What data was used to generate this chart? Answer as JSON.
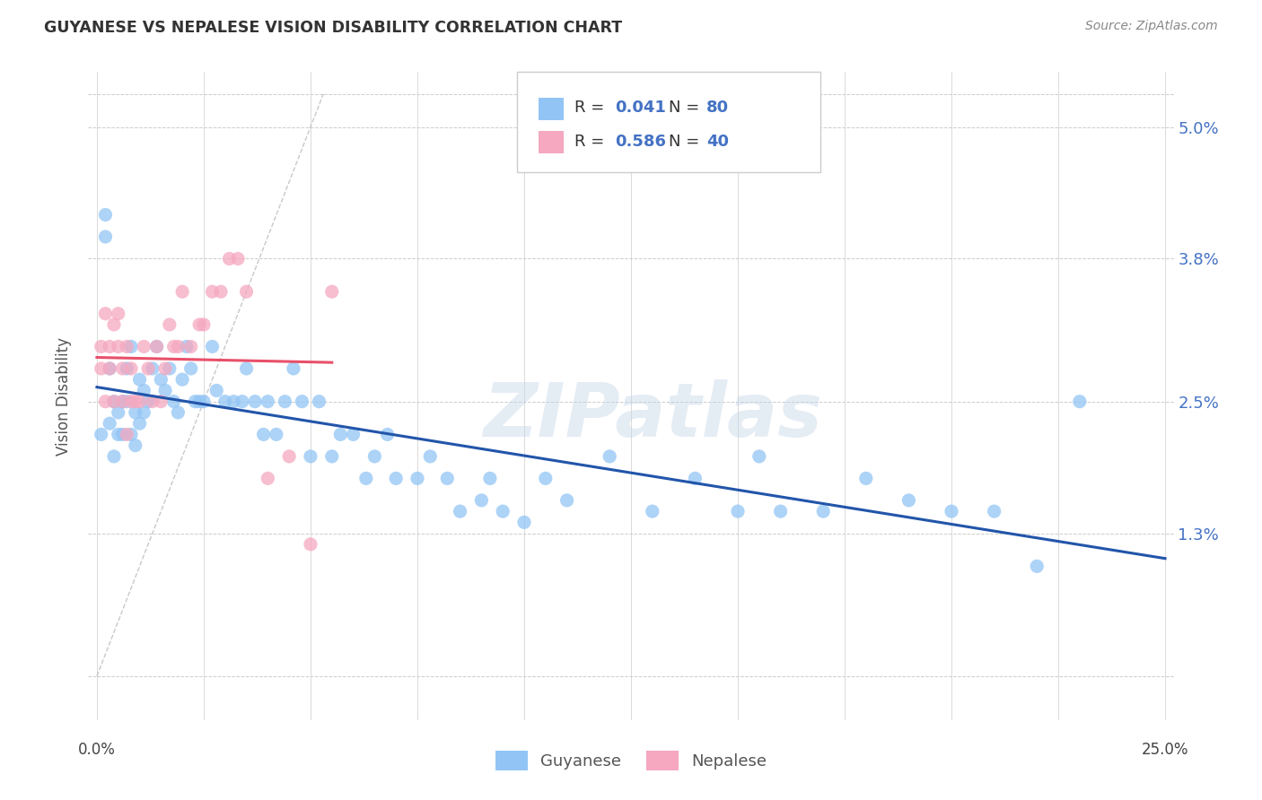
{
  "title": "GUYANESE VS NEPALESE VISION DISABILITY CORRELATION CHART",
  "source": "Source: ZipAtlas.com",
  "ylabel": "Vision Disability",
  "watermark": "ZIPatlas",
  "guyanese_color": "#92C5F5",
  "nepalese_color": "#F5A8C0",
  "trend_guyanese_color": "#2255AA",
  "trend_nepalese_color": "#E8506A",
  "diag_color": "#BBBBBB",
  "background_color": "#FFFFFF",
  "xlim": [
    0.0,
    0.25
  ],
  "ylim": [
    0.0,
    0.053
  ],
  "ytick_vals": [
    0.0,
    0.013,
    0.025,
    0.038,
    0.05
  ],
  "ytick_labels": [
    "",
    "1.3%",
    "2.5%",
    "3.8%",
    "5.0%"
  ],
  "xtick_positions": [
    0.0,
    0.025,
    0.05,
    0.075,
    0.1,
    0.125,
    0.15,
    0.175,
    0.2,
    0.225,
    0.25
  ],
  "guyanese_x": [
    0.001,
    0.002,
    0.002,
    0.003,
    0.003,
    0.004,
    0.004,
    0.005,
    0.005,
    0.006,
    0.006,
    0.007,
    0.007,
    0.008,
    0.008,
    0.009,
    0.009,
    0.01,
    0.01,
    0.011,
    0.011,
    0.012,
    0.013,
    0.014,
    0.015,
    0.016,
    0.017,
    0.018,
    0.019,
    0.02,
    0.021,
    0.022,
    0.023,
    0.024,
    0.025,
    0.027,
    0.028,
    0.03,
    0.032,
    0.034,
    0.035,
    0.037,
    0.039,
    0.04,
    0.042,
    0.044,
    0.046,
    0.048,
    0.05,
    0.052,
    0.055,
    0.057,
    0.06,
    0.063,
    0.065,
    0.068,
    0.07,
    0.075,
    0.078,
    0.082,
    0.085,
    0.09,
    0.092,
    0.095,
    0.1,
    0.105,
    0.11,
    0.12,
    0.13,
    0.14,
    0.15,
    0.155,
    0.16,
    0.17,
    0.18,
    0.19,
    0.2,
    0.21,
    0.22,
    0.23
  ],
  "guyanese_y": [
    0.022,
    0.042,
    0.04,
    0.028,
    0.023,
    0.025,
    0.02,
    0.024,
    0.022,
    0.025,
    0.022,
    0.028,
    0.025,
    0.03,
    0.022,
    0.024,
    0.021,
    0.027,
    0.023,
    0.026,
    0.024,
    0.025,
    0.028,
    0.03,
    0.027,
    0.026,
    0.028,
    0.025,
    0.024,
    0.027,
    0.03,
    0.028,
    0.025,
    0.025,
    0.025,
    0.03,
    0.026,
    0.025,
    0.025,
    0.025,
    0.028,
    0.025,
    0.022,
    0.025,
    0.022,
    0.025,
    0.028,
    0.025,
    0.02,
    0.025,
    0.02,
    0.022,
    0.022,
    0.018,
    0.02,
    0.022,
    0.018,
    0.018,
    0.02,
    0.018,
    0.015,
    0.016,
    0.018,
    0.015,
    0.014,
    0.018,
    0.016,
    0.02,
    0.015,
    0.018,
    0.015,
    0.02,
    0.015,
    0.015,
    0.018,
    0.016,
    0.015,
    0.015,
    0.01,
    0.025
  ],
  "nepalese_x": [
    0.001,
    0.001,
    0.002,
    0.002,
    0.003,
    0.003,
    0.004,
    0.004,
    0.005,
    0.005,
    0.006,
    0.006,
    0.007,
    0.007,
    0.008,
    0.008,
    0.009,
    0.01,
    0.011,
    0.012,
    0.013,
    0.014,
    0.015,
    0.016,
    0.017,
    0.018,
    0.019,
    0.02,
    0.022,
    0.024,
    0.025,
    0.027,
    0.029,
    0.031,
    0.033,
    0.035,
    0.04,
    0.045,
    0.05,
    0.055
  ],
  "nepalese_y": [
    0.028,
    0.03,
    0.033,
    0.025,
    0.03,
    0.028,
    0.032,
    0.025,
    0.03,
    0.033,
    0.028,
    0.025,
    0.03,
    0.022,
    0.025,
    0.028,
    0.025,
    0.025,
    0.03,
    0.028,
    0.025,
    0.03,
    0.025,
    0.028,
    0.032,
    0.03,
    0.03,
    0.035,
    0.03,
    0.032,
    0.032,
    0.035,
    0.035,
    0.038,
    0.038,
    0.035,
    0.018,
    0.02,
    0.012,
    0.035
  ]
}
